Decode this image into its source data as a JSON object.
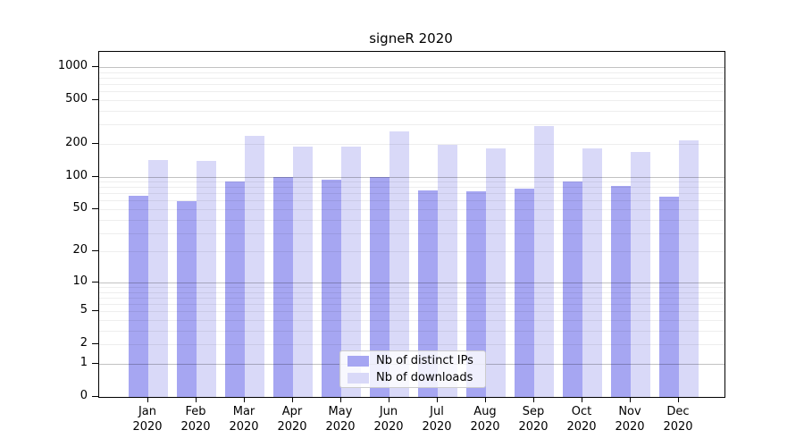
{
  "chart_data": {
    "type": "bar",
    "title": "signeR 2020",
    "scale": "log10(value+1)",
    "categories": [
      "Jan",
      "Feb",
      "Mar",
      "Apr",
      "May",
      "Jun",
      "Jul",
      "Aug",
      "Sep",
      "Oct",
      "Nov",
      "Dec"
    ],
    "category_year": "2020",
    "series": [
      {
        "name": "Nb of distinct IPs",
        "color": "#a6a6f2",
        "values": [
          67,
          59,
          90,
          99,
          93,
          100,
          74,
          73,
          77,
          90,
          82,
          65
        ]
      },
      {
        "name": "Nb of downloads",
        "color": "#d9d9f8",
        "values": [
          142,
          138,
          235,
          189,
          189,
          260,
          194,
          181,
          290,
          181,
          167,
          215
        ]
      }
    ],
    "yticks": [
      0,
      1,
      2,
      5,
      10,
      20,
      50,
      100,
      200,
      500,
      1000
    ],
    "ylim": [
      0,
      1000
    ],
    "grid": "on",
    "legend_position": "lower center"
  }
}
